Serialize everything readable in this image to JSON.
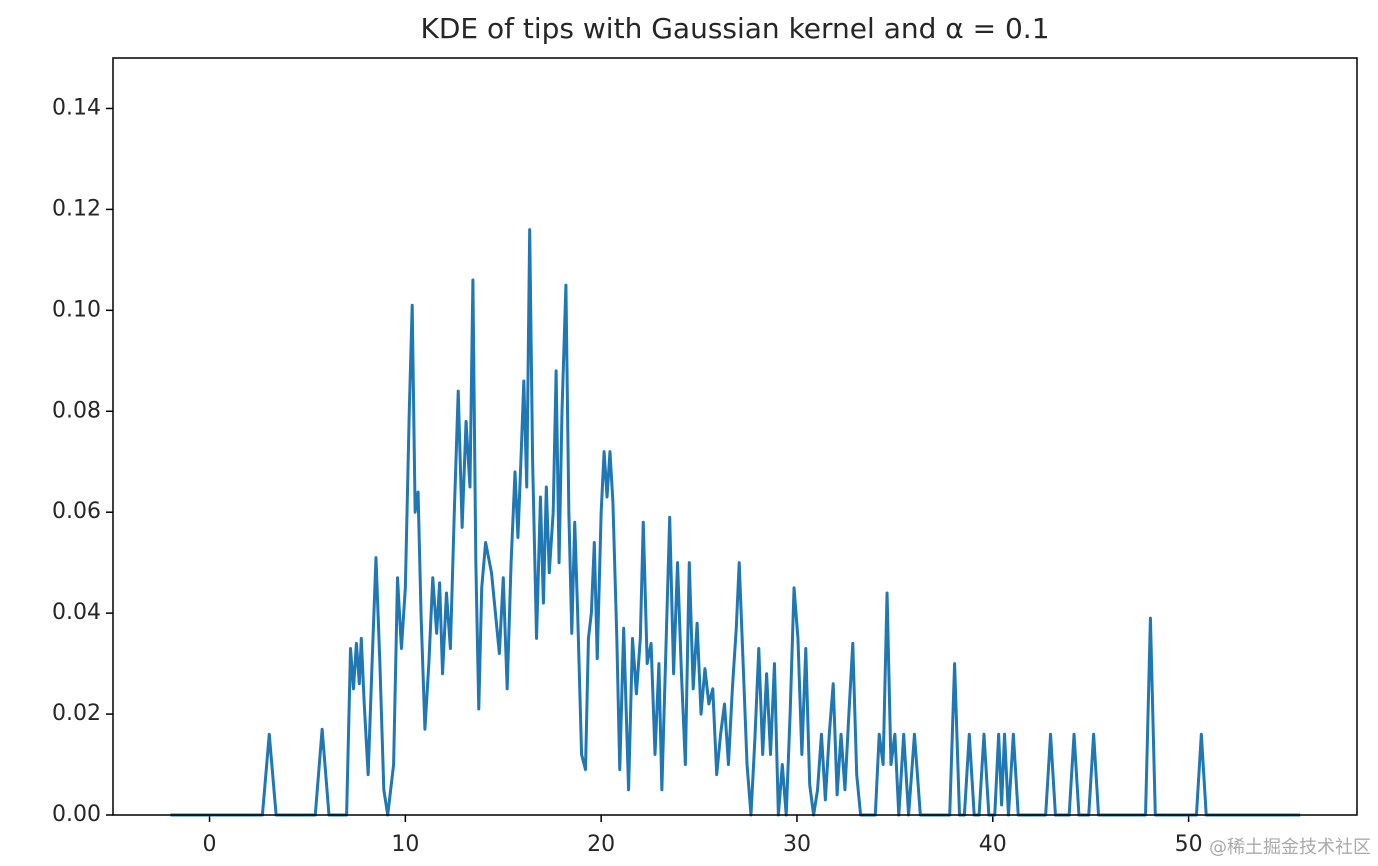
{
  "chart_data": {
    "type": "line",
    "title": "KDE of tips with Gaussian kernel and α = 0.1",
    "watermark": "@稀土掘金技术社区",
    "color": "#1f77b4",
    "xlim": [
      -4.93,
      58.6
    ],
    "ylim": [
      0,
      0.15
    ],
    "xticks": [
      0,
      10,
      20,
      30,
      40,
      50
    ],
    "yticks": [
      {
        "value": 0,
        "label": "0.00"
      },
      {
        "value": 0.02,
        "label": "0.02"
      },
      {
        "value": 0.04,
        "label": "0.04"
      },
      {
        "value": 0.06,
        "label": "0.06"
      },
      {
        "value": 0.08,
        "label": "0.08"
      },
      {
        "value": 0.1,
        "label": "0.10"
      },
      {
        "value": 0.12,
        "label": "0.12"
      },
      {
        "value": 0.14,
        "label": "0.14"
      }
    ],
    "x": [
      -2,
      2.7,
      3.05,
      3.4,
      5.4,
      5.75,
      6.1,
      7.0,
      7.2,
      7.35,
      7.5,
      7.65,
      7.75,
      7.9,
      8.1,
      8.3,
      8.5,
      8.7,
      8.9,
      9.1,
      9.4,
      9.6,
      9.8,
      10.0,
      10.2,
      10.35,
      10.5,
      10.65,
      10.8,
      11.0,
      11.2,
      11.4,
      11.6,
      11.75,
      11.9,
      12.1,
      12.3,
      12.5,
      12.7,
      12.9,
      13.1,
      13.3,
      13.45,
      13.6,
      13.75,
      13.9,
      14.1,
      14.4,
      14.6,
      14.8,
      15.0,
      15.2,
      15.4,
      15.6,
      15.75,
      15.9,
      16.05,
      16.2,
      16.35,
      16.5,
      16.7,
      16.9,
      17.05,
      17.2,
      17.35,
      17.55,
      17.7,
      17.85,
      18.0,
      18.2,
      18.35,
      18.5,
      18.65,
      18.8,
      19.0,
      19.2,
      19.35,
      19.5,
      19.65,
      19.8,
      20.0,
      20.15,
      20.3,
      20.45,
      20.6,
      20.8,
      20.95,
      21.15,
      21.4,
      21.6,
      21.8,
      22.0,
      22.15,
      22.35,
      22.55,
      22.75,
      22.95,
      23.1,
      23.3,
      23.5,
      23.7,
      23.9,
      24.1,
      24.3,
      24.5,
      24.7,
      24.9,
      25.1,
      25.3,
      25.5,
      25.7,
      25.9,
      26.1,
      26.3,
      26.5,
      26.7,
      26.9,
      27.05,
      27.25,
      27.45,
      27.65,
      27.85,
      28.05,
      28.25,
      28.45,
      28.65,
      28.85,
      29.05,
      29.25,
      29.45,
      29.65,
      29.85,
      30.05,
      30.25,
      30.45,
      30.65,
      30.85,
      31.05,
      31.25,
      31.45,
      31.65,
      31.85,
      32.05,
      32.25,
      32.45,
      32.65,
      32.85,
      33.05,
      33.25,
      34.0,
      34.2,
      34.4,
      34.6,
      34.8,
      35.0,
      35.2,
      35.45,
      35.7,
      36.0,
      36.3,
      37.8,
      38.05,
      38.3,
      38.55,
      38.8,
      39.05,
      39.3,
      39.55,
      39.8,
      40.1,
      40.3,
      40.45,
      40.6,
      40.8,
      41.05,
      41.3,
      42.7,
      42.95,
      43.2,
      43.9,
      44.15,
      44.4,
      44.9,
      45.15,
      45.4,
      47.8,
      48.05,
      48.3,
      50.4,
      50.65,
      50.9,
      55.7
    ],
    "values": [
      0,
      0,
      0.016,
      0,
      0,
      0.017,
      0,
      0,
      0.033,
      0.025,
      0.034,
      0.026,
      0.035,
      0.022,
      0.008,
      0.03,
      0.051,
      0.03,
      0.005,
      0,
      0.01,
      0.047,
      0.033,
      0.045,
      0.08,
      0.101,
      0.06,
      0.064,
      0.04,
      0.017,
      0.03,
      0.047,
      0.036,
      0.046,
      0.028,
      0.044,
      0.033,
      0.06,
      0.084,
      0.057,
      0.078,
      0.065,
      0.106,
      0.05,
      0.021,
      0.045,
      0.054,
      0.048,
      0.04,
      0.032,
      0.047,
      0.025,
      0.05,
      0.068,
      0.055,
      0.07,
      0.086,
      0.065,
      0.116,
      0.07,
      0.035,
      0.063,
      0.042,
      0.065,
      0.048,
      0.06,
      0.088,
      0.05,
      0.08,
      0.105,
      0.06,
      0.036,
      0.058,
      0.04,
      0.012,
      0.009,
      0.035,
      0.04,
      0.054,
      0.031,
      0.06,
      0.072,
      0.063,
      0.072,
      0.062,
      0.035,
      0.009,
      0.037,
      0.005,
      0.035,
      0.024,
      0.035,
      0.058,
      0.03,
      0.034,
      0.012,
      0.03,
      0.005,
      0.032,
      0.059,
      0.028,
      0.05,
      0.028,
      0.01,
      0.05,
      0.025,
      0.038,
      0.02,
      0.029,
      0.022,
      0.025,
      0.008,
      0.016,
      0.022,
      0.01,
      0.025,
      0.037,
      0.05,
      0.03,
      0.01,
      0,
      0.015,
      0.033,
      0.012,
      0.028,
      0.012,
      0.03,
      0,
      0.01,
      0,
      0.02,
      0.045,
      0.035,
      0.012,
      0.033,
      0.006,
      0,
      0.005,
      0.016,
      0.003,
      0.016,
      0.026,
      0.004,
      0.016,
      0.005,
      0.02,
      0.034,
      0.008,
      0,
      0,
      0.016,
      0.01,
      0.044,
      0.01,
      0.016,
      0,
      0.016,
      0,
      0.016,
      0,
      0,
      0.03,
      0,
      0,
      0.016,
      0,
      0,
      0.016,
      0,
      0,
      0.016,
      0.002,
      0.016,
      0,
      0.016,
      0,
      0,
      0.016,
      0,
      0,
      0.016,
      0,
      0,
      0.016,
      0,
      0,
      0.039,
      0,
      0,
      0.016,
      0,
      0
    ]
  }
}
